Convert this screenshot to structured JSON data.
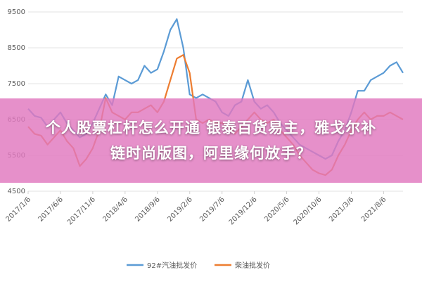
{
  "chart_data": {
    "type": "line",
    "categories": [
      "2017/1/6",
      null,
      null,
      null,
      null,
      "2017/6/6",
      null,
      null,
      null,
      null,
      "2017/11/6",
      null,
      null,
      null,
      null,
      "2018/4/6",
      null,
      null,
      null,
      null,
      "2018/9/6",
      null,
      null,
      null,
      null,
      "2019/2/6",
      null,
      null,
      null,
      null,
      "2019/7/6",
      null,
      null,
      null,
      null,
      "2019/12/6",
      null,
      null,
      null,
      null,
      "2020/5/6",
      null,
      null,
      null,
      null,
      "2020/10/6",
      null,
      null,
      null,
      null,
      "2021/3/6",
      null,
      null,
      null,
      null,
      "2021/8/6",
      null,
      null,
      null
    ],
    "series": [
      {
        "name": "92#汽油批发价",
        "color": "#5b9bd5",
        "values": [
          6800,
          6600,
          6550,
          6300,
          6500,
          6700,
          6400,
          6200,
          6000,
          6100,
          6400,
          6800,
          7200,
          6900,
          7700,
          7600,
          7500,
          7600,
          8000,
          7800,
          7900,
          8400,
          9000,
          9300,
          8500,
          7200,
          7100,
          7200,
          7100,
          7000,
          6700,
          6600,
          6900,
          7000,
          7600,
          7000,
          6800,
          6900,
          6700,
          6400,
          6200,
          6000,
          5800,
          5700,
          5600,
          5500,
          5400,
          5500,
          5900,
          6200,
          6700,
          7300,
          7300,
          7600,
          7700,
          7800,
          8000,
          8100,
          7800
        ]
      },
      {
        "name": "柴油批发价",
        "color": "#ed7d31",
        "values": [
          6300,
          6100,
          6050,
          5800,
          6000,
          6200,
          5900,
          5700,
          5200,
          5400,
          5700,
          6200,
          7100,
          6700,
          6600,
          6500,
          6700,
          6700,
          6800,
          6900,
          6700,
          7000,
          7600,
          8200,
          8300,
          7800,
          6500,
          6400,
          6500,
          6400,
          6400,
          6300,
          6100,
          6300,
          6500,
          6700,
          6500,
          6400,
          6500,
          6200,
          6000,
          5800,
          5500,
          5300,
          5100,
          5000,
          4950,
          5100,
          5500,
          5800,
          6200,
          6500,
          6700,
          6500,
          6600,
          6600,
          6700,
          6600,
          6500
        ]
      }
    ],
    "ylim": [
      4500,
      9500
    ],
    "yticks": [
      4500,
      5500,
      6500,
      7500,
      8500,
      9500
    ],
    "grid": true,
    "legend": "bottom"
  },
  "overlay": {
    "lines": [
      "个人股票杠杆怎么开通 银泰百货易主，雅戈尔补",
      "链时尚版图，阿里缘何放手？"
    ]
  }
}
